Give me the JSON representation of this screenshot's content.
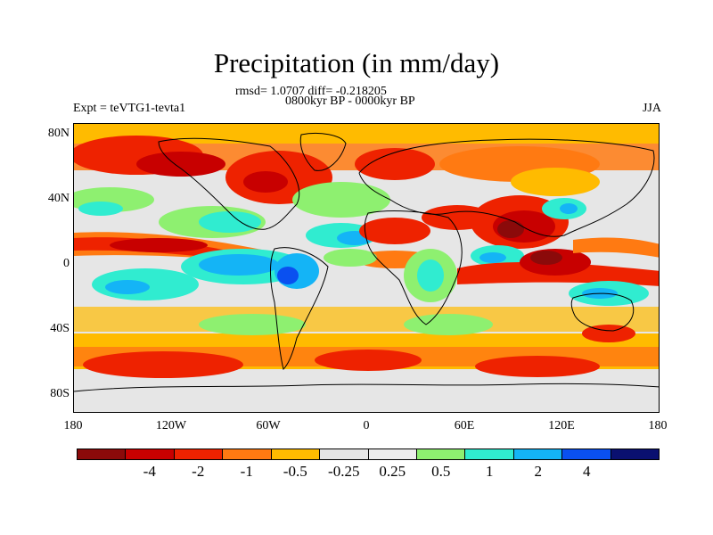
{
  "title": "Precipitation (in mm/day)",
  "stats": "rmsd= 1.0707 diff= -0.218205",
  "period": "0800kyr BP - 0000kyr BP",
  "experiment": "Expt = teVTG1-tevta1",
  "season": "JJA",
  "lat_labels": [
    "80N",
    "40N",
    "0",
    "40S",
    "80S"
  ],
  "lon_labels": [
    "180",
    "120W",
    "60W",
    "0",
    "60E",
    "120E",
    "180"
  ],
  "colorbar": {
    "colors": [
      "#8b0a0a",
      "#c80000",
      "#ee2200",
      "#ff7a12",
      "#ffbb00",
      "#e6e6e6",
      "#ededed",
      "#8ef070",
      "#30ecd0",
      "#14b4f6",
      "#0a50f0",
      "#0a1070"
    ],
    "labels": [
      "-4",
      "-2",
      "-1",
      "-0.5",
      "-0.25",
      "0.25",
      "0.5",
      "1",
      "2",
      "4"
    ]
  },
  "fill_colors": {
    "ocean_neutral": "#e6e6e6",
    "coast": "#000000"
  }
}
